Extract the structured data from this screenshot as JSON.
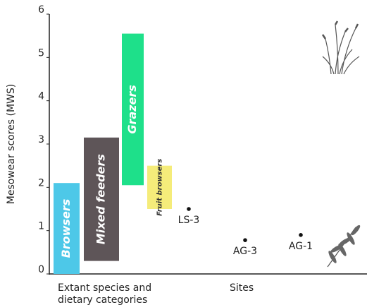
{
  "chart_data": {
    "type": "floating-bar",
    "y_label": "Mesowear scores (MWS)",
    "group_labels": [
      "Extant species and dietary categories",
      "Sites"
    ],
    "ylim": [
      0,
      6
    ],
    "yticks": [
      0,
      1,
      2,
      3,
      4,
      5,
      6
    ],
    "bars": [
      {
        "name": "Browsers",
        "color": "#4dc8e8",
        "low": 0,
        "high": 2.1
      },
      {
        "name": "Mixed feeders",
        "color": "#5e5558",
        "low": 0.3,
        "high": 3.15
      },
      {
        "name": "Grazers",
        "color": "#1ee08a",
        "low": 2.05,
        "high": 5.55
      },
      {
        "name": "Fruit browsers",
        "color": "#f5ec7a",
        "low": 1.5,
        "high": 2.5
      }
    ],
    "points": [
      {
        "name": "LS-3",
        "value": 1.5
      },
      {
        "name": "AG-3",
        "value": 0.78
      },
      {
        "name": "AG-1",
        "value": 0.9
      }
    ]
  }
}
